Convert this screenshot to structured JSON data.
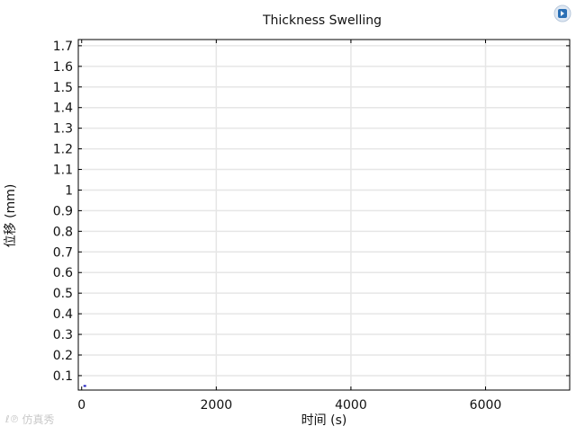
{
  "chart_data": {
    "type": "line",
    "title": "Thickness Swelling",
    "xlabel": "时间 (s)",
    "ylabel": "位移 (mm)",
    "xlim": [
      -50,
      7250
    ],
    "ylim": [
      0.03,
      1.73
    ],
    "x_ticks": [
      0,
      2000,
      4000,
      6000
    ],
    "y_ticks": [
      0.1,
      0.2,
      0.3,
      0.4,
      0.5,
      0.6,
      0.7,
      0.8,
      0.9,
      1,
      1.1,
      1.2,
      1.3,
      1.4,
      1.5,
      1.6,
      1.7
    ],
    "grid": true,
    "legend": "none",
    "series": [
      {
        "x": [
          0
        ],
        "y": [
          0.05
        ]
      }
    ],
    "colors": {
      "series": "#1f1fbf",
      "grid": "#e6e6e6",
      "axis": "#000000"
    }
  },
  "logo": {
    "icon": "comsol-logo-icon",
    "color": "#2a6fb5"
  },
  "watermark": {
    "mark": "ℓ℗",
    "text": "仿真秀"
  }
}
